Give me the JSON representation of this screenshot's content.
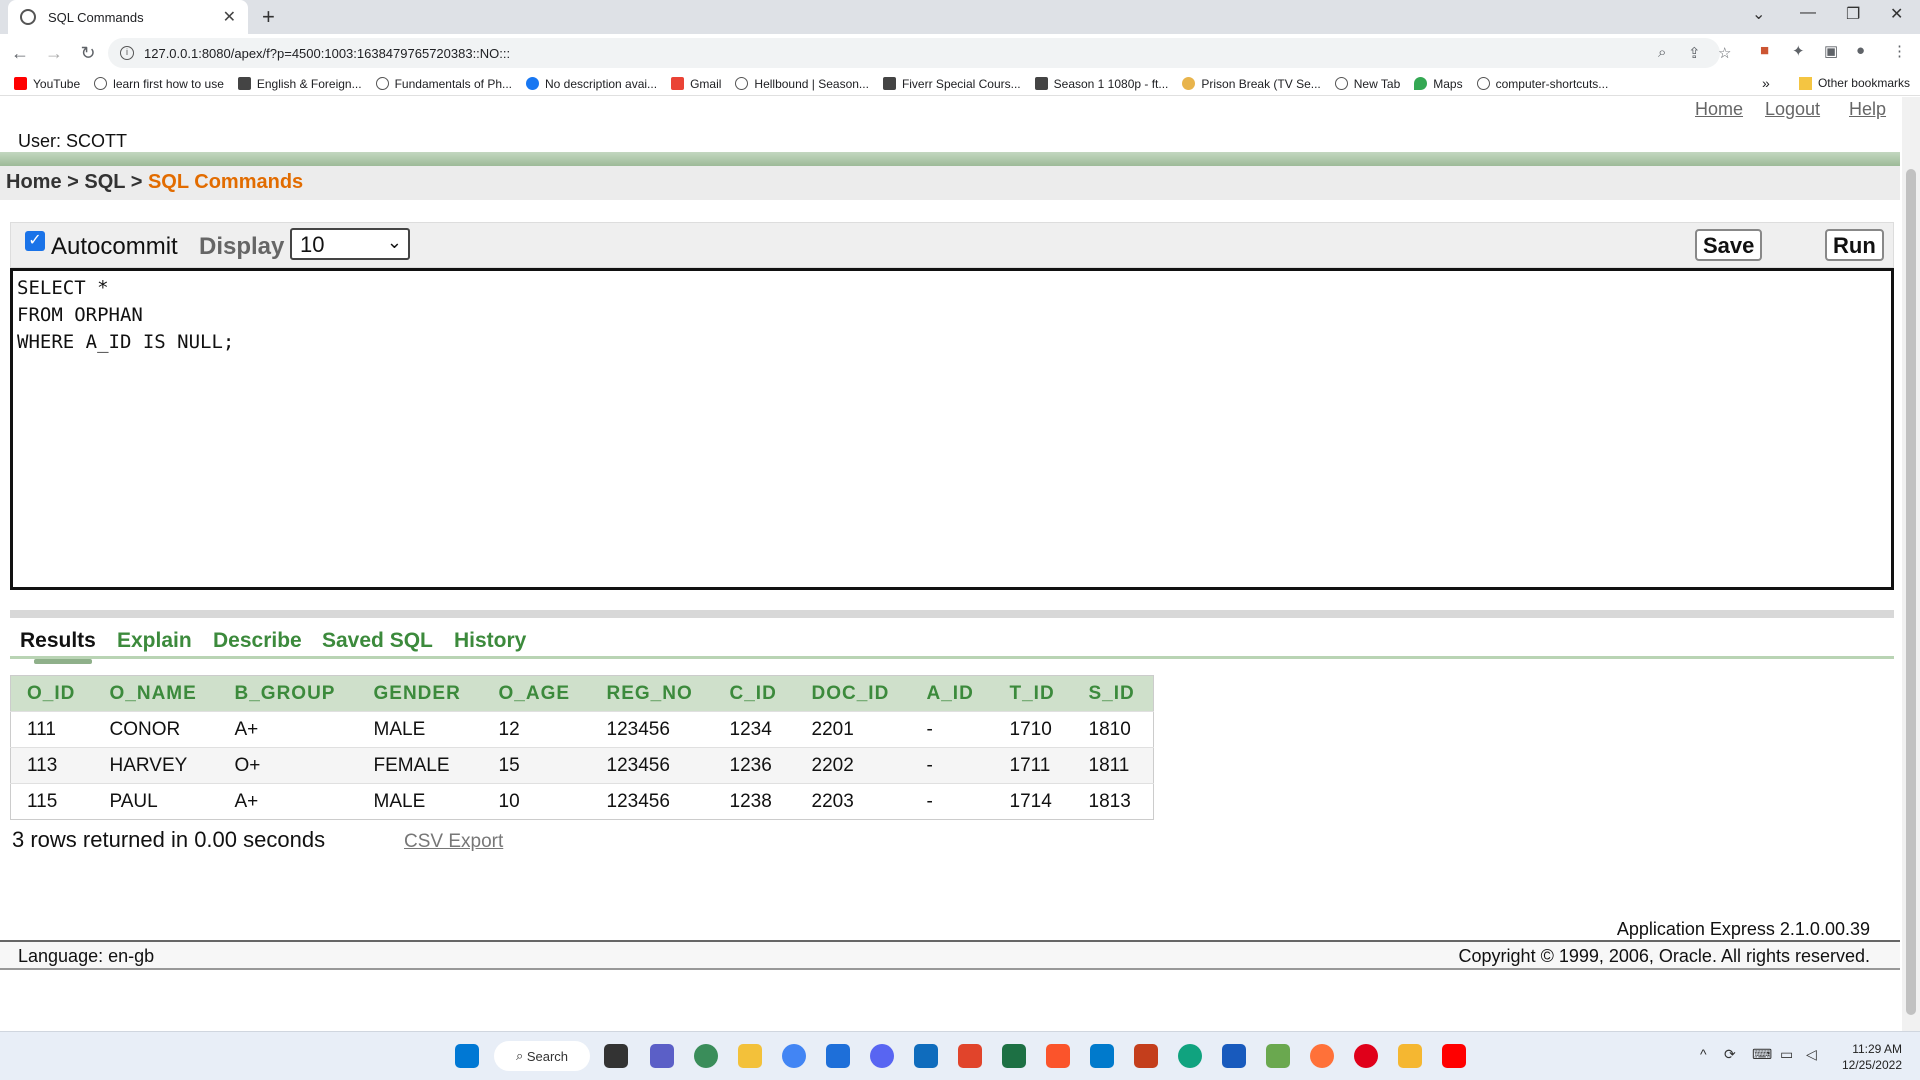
{
  "browser": {
    "tab_title": "SQL Commands",
    "url": "127.0.0.1:8080/apex/f?p=4500:1003:1638479765720383::NO:::",
    "bookmarks": [
      "YouTube",
      "learn first how to use",
      "English & Foreign...",
      "Fundamentals of Ph...",
      "No description avai...",
      "Gmail",
      "Hellbound | Season...",
      "Fiverr Special Cours...",
      "Season 1 1080p - ft...",
      "Prison Break (TV Se...",
      "New Tab",
      "Maps",
      "computer-shortcuts..."
    ],
    "other_bookmarks": "Other bookmarks",
    "more_bookmarks": "»"
  },
  "app": {
    "top_links": {
      "home": "Home",
      "logout": "Logout",
      "help": "Help"
    },
    "user": "User: SCOTT",
    "breadcrumb": {
      "home": "Home",
      "sep": " > ",
      "sql": "SQL",
      "current": "SQL Commands"
    },
    "autocommit_label": "Autocommit",
    "display_label": "Display",
    "display_value": "10",
    "save": "Save",
    "run": "Run",
    "query": "SELECT *\nFROM ORPHAN\nWHERE A_ID IS NULL;",
    "tabs": {
      "results": "Results",
      "explain": "Explain",
      "describe": "Describe",
      "saved": "Saved SQL",
      "history": "History"
    },
    "table": {
      "headers": [
        "O_ID",
        "O_NAME",
        "B_GROUP",
        "GENDER",
        "O_AGE",
        "REG_NO",
        "C_ID",
        "DOC_ID",
        "A_ID",
        "T_ID",
        "S_ID"
      ],
      "rows": [
        [
          "111",
          "CONOR",
          "A+",
          "MALE",
          "12",
          "123456",
          "1234",
          "2201",
          "-",
          "1710",
          "1810"
        ],
        [
          "113",
          "HARVEY",
          "O+",
          "FEMALE",
          "15",
          "123456",
          "1236",
          "2202",
          "-",
          "1711",
          "1811"
        ],
        [
          "115",
          "PAUL",
          "A+",
          "MALE",
          "10",
          "123456",
          "1238",
          "2203",
          "-",
          "1714",
          "1813"
        ]
      ]
    },
    "rows_returned": "3 rows returned in 0.00 seconds",
    "csv_export": "CSV Export",
    "version": "Application Express 2.1.0.00.39",
    "language": "Language: en-gb",
    "copyright": "Copyright © 1999, 2006, Oracle. All rights reserved."
  },
  "taskbar": {
    "search": "Search",
    "time": "11:29 AM",
    "date": "12/25/2022"
  }
}
